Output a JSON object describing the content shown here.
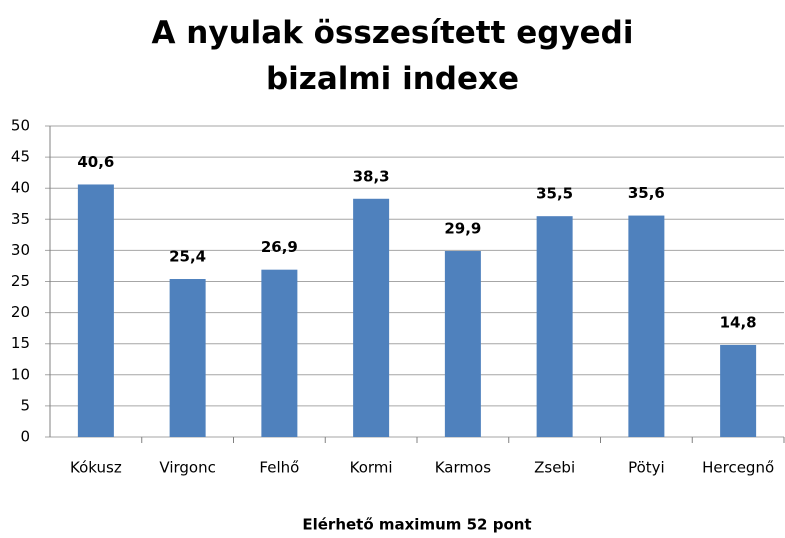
{
  "chart_data": {
    "type": "bar",
    "title": "A nyulak összesített egyedi bizalmi indexe",
    "x_label": "Elérhető maximum 52 pont",
    "categories": [
      "Kókusz",
      "Virgonc",
      "Felhő",
      "Kormi",
      "Karmos",
      "Zsebi",
      "Pötyi",
      "Hercegnő"
    ],
    "values": [
      40.6,
      25.4,
      26.9,
      38.3,
      29.9,
      35.5,
      35.6,
      14.8
    ],
    "value_labels": [
      "40,6",
      "25,4",
      "26,9",
      "38,3",
      "29,9",
      "35,5",
      "35,6",
      "14,8"
    ],
    "color": "#4f81bd",
    "ylim": [
      0,
      50
    ],
    "yticks": [
      0,
      5,
      10,
      15,
      20,
      25,
      30,
      35,
      40,
      45,
      50
    ],
    "grid": true
  }
}
